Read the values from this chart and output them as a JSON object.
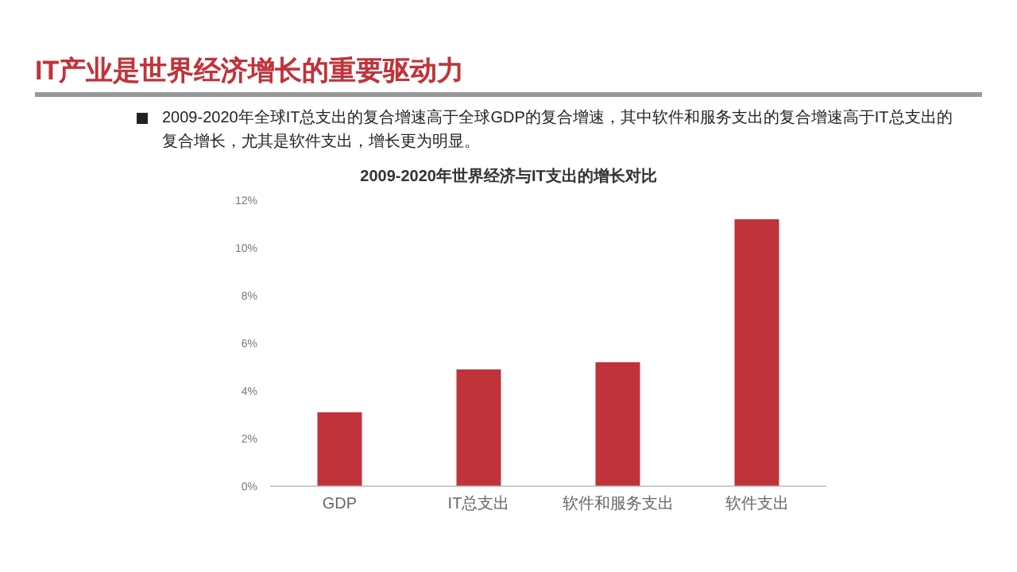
{
  "chart_data": {
    "type": "bar",
    "title": "IT产业是世界经济增长的重要驱动力",
    "subtitle": "2009-2020年世界经济与IT支出的增长对比",
    "annotations": [
      "2009-2020年全球IT总支出的复合增速高于全球GDP的复合增速，其中软件和服务支出的复合增速高于IT总支出的复合增长，尤其是软件支出，增长更为明显。"
    ],
    "categories": [
      "GDP",
      "IT总支出",
      "软件和服务支出",
      "软件支出"
    ],
    "values": [
      3.1,
      4.9,
      5.2,
      11.2
    ],
    "color": "#c0333a",
    "ylim": [
      0,
      12
    ],
    "yticks": [
      {
        "value": 0,
        "label": "0%"
      },
      {
        "value": 2,
        "label": "2%"
      },
      {
        "value": 4,
        "label": "4%"
      },
      {
        "value": 6,
        "label": "6%"
      },
      {
        "value": 8,
        "label": "8%"
      },
      {
        "value": 10,
        "label": "10%"
      },
      {
        "value": 12,
        "label": "12%"
      }
    ],
    "grid": false
  }
}
